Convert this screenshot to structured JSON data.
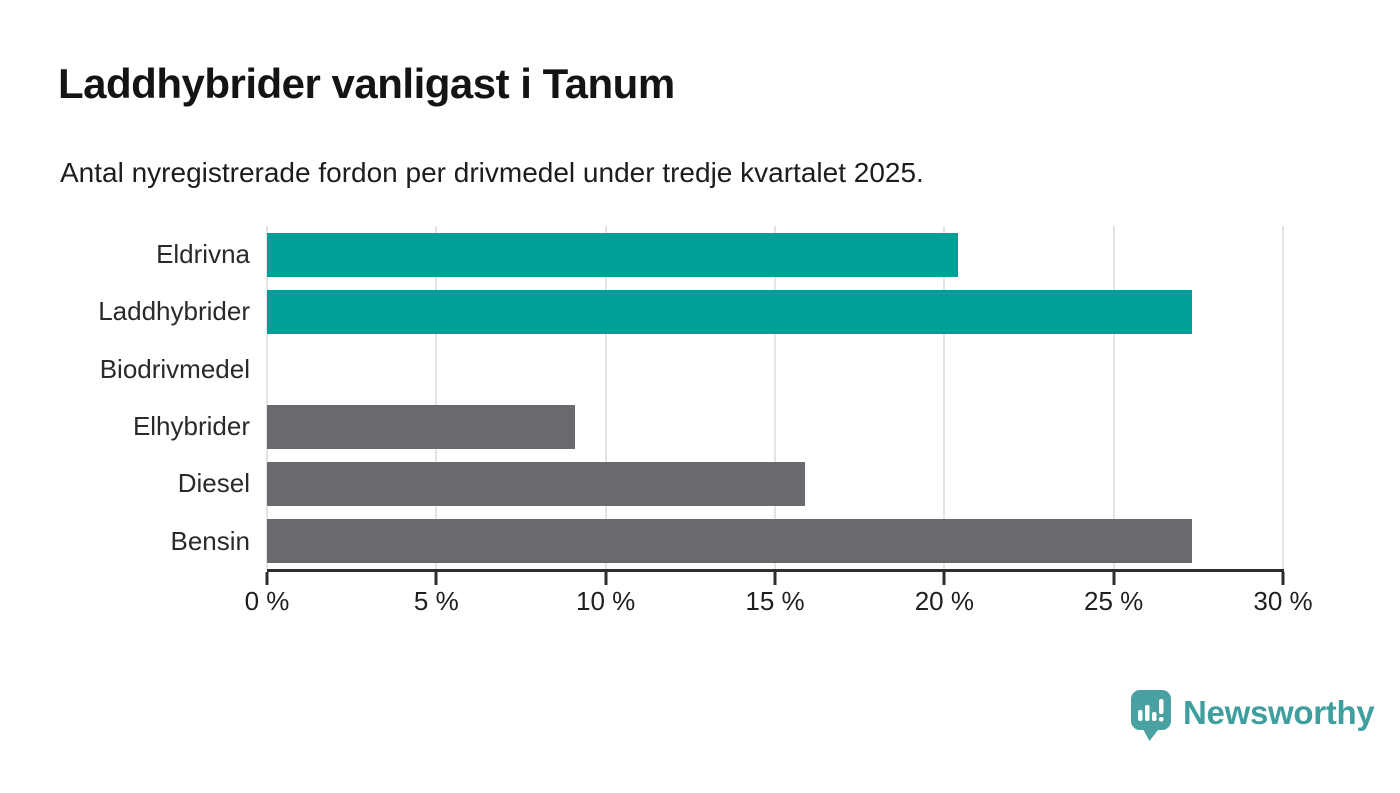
{
  "header": {
    "title": "Laddhybrider vanligast i Tanum",
    "subtitle": "Antal nyregistrerade fordon per drivmedel under tredje kvartalet 2025."
  },
  "chart_data": {
    "type": "bar",
    "orientation": "horizontal",
    "title": "Laddhybrider vanligast i Tanum",
    "subtitle": "Antal nyregistrerade fordon per drivmedel under tredje kvartalet 2025.",
    "categories": [
      "Eldrivna",
      "Laddhybrider",
      "Biodrivmedel",
      "Elhybrider",
      "Diesel",
      "Bensin"
    ],
    "values": [
      20.4,
      27.3,
      0,
      9.1,
      15.9,
      27.3
    ],
    "unit": "%",
    "xlim": [
      0,
      30
    ],
    "x_ticks": [
      0,
      5,
      10,
      15,
      20,
      25,
      30
    ],
    "x_tick_labels": [
      "0 %",
      "5 %",
      "10 %",
      "15 %",
      "20 %",
      "25 %",
      "30 %"
    ],
    "bar_colors": [
      "#009e96",
      "#009e96",
      "#6a6a6e",
      "#6a6a6e",
      "#6a6a6e",
      "#6a6a6e"
    ],
    "grid": true,
    "legend": "none"
  },
  "colors": {
    "highlight": "#009e96",
    "muted": "#6a6a6e",
    "gridline": "#e4e4e4",
    "axis": "#2e2e2e",
    "brand": "#3f9e9e"
  },
  "footer": {
    "brand": "Newsworthy"
  }
}
